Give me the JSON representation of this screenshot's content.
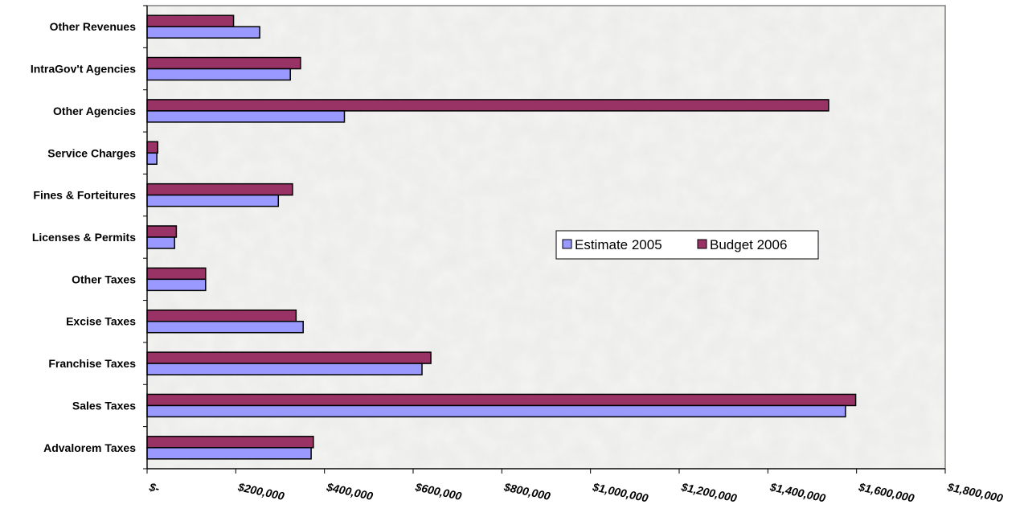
{
  "chart_data": {
    "type": "bar",
    "orientation": "horizontal",
    "categories": [
      "Advalorem Taxes",
      "Sales Taxes",
      "Franchise Taxes",
      "Excise Taxes",
      "Other Taxes",
      "Licenses & Permits",
      "Fines & Forteitures",
      "Service Charges",
      "Other Agencies",
      "IntraGov't Agencies",
      "Other Revenues"
    ],
    "series": [
      {
        "name": "Estimate 2005",
        "color": "#9999ff",
        "values": [
          370000,
          1575000,
          620000,
          352000,
          132000,
          62000,
          296000,
          22000,
          445000,
          323000,
          254000
        ]
      },
      {
        "name": "Budget 2006",
        "color": "#993366",
        "values": [
          375000,
          1598000,
          640000,
          336000,
          132000,
          66000,
          328000,
          24000,
          1537000,
          346000,
          195000
        ]
      }
    ],
    "xlim": [
      0,
      1800000
    ],
    "xticks": [
      {
        "value": 0,
        "label": "$-"
      },
      {
        "value": 200000,
        "label": "$200,000"
      },
      {
        "value": 400000,
        "label": "$400,000"
      },
      {
        "value": 600000,
        "label": "$600,000"
      },
      {
        "value": 800000,
        "label": "$800,000"
      },
      {
        "value": 1000000,
        "label": "$1,000,000"
      },
      {
        "value": 1200000,
        "label": "$1,200,000"
      },
      {
        "value": 1400000,
        "label": "$1,400,000"
      },
      {
        "value": 1600000,
        "label": "$1,600,000"
      },
      {
        "value": 1800000,
        "label": "$1,800,000"
      }
    ],
    "title": "",
    "xlabel": "",
    "ylabel": "",
    "grid": false,
    "legend": "center-right",
    "background": "gray marble texture"
  }
}
